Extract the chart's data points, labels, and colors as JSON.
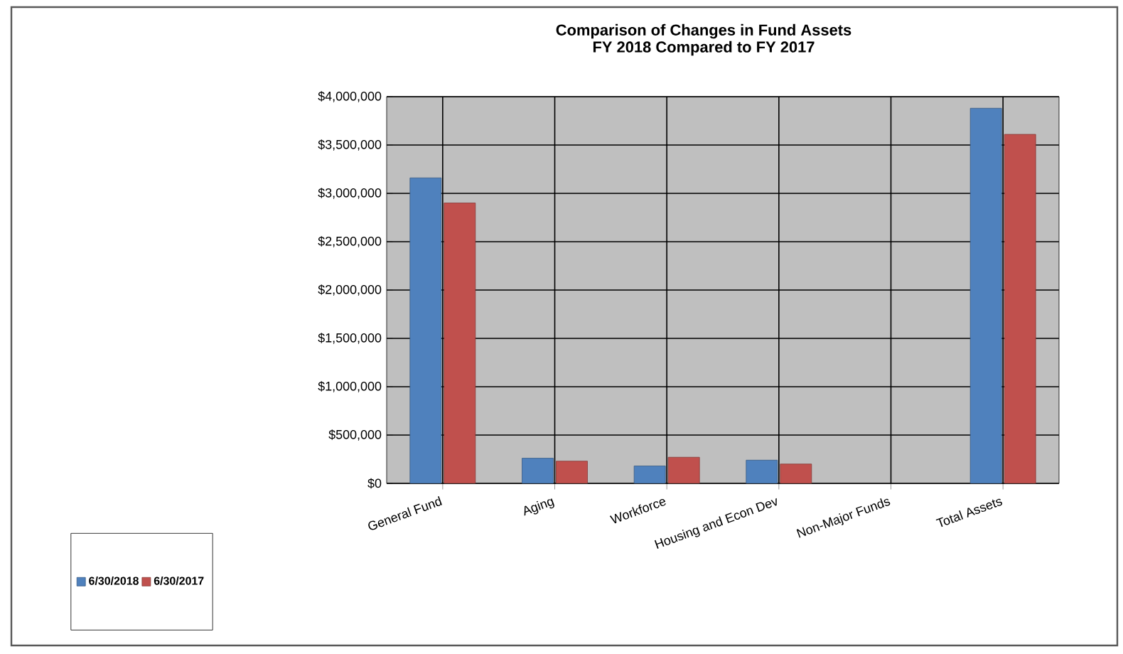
{
  "chart_data": {
    "type": "bar",
    "title": "Comparison of Changes in Fund Assets",
    "subtitle": "FY 2018 Compared to FY 2017",
    "categories": [
      "General Fund",
      "Aging",
      "Workforce",
      "Housing and Econ Dev",
      "Non-Major Funds",
      "Total Assets"
    ],
    "series": [
      {
        "name": "6/30/2018",
        "color": "#4f81bd",
        "values": [
          3160000,
          260000,
          180000,
          240000,
          null,
          3880000
        ]
      },
      {
        "name": "6/30/2017",
        "color": "#c0504d",
        "values": [
          2900000,
          230000,
          270000,
          200000,
          null,
          3610000
        ]
      }
    ],
    "ylim": [
      0,
      4000000
    ],
    "yticks": [
      {
        "value": 0,
        "label": "$0"
      },
      {
        "value": 500000,
        "label": "$500,000"
      },
      {
        "value": 1000000,
        "label": "$1,000,000"
      },
      {
        "value": 1500000,
        "label": "$1,500,000"
      },
      {
        "value": 2000000,
        "label": "$2,000,000"
      },
      {
        "value": 2500000,
        "label": "$2,500,000"
      },
      {
        "value": 3000000,
        "label": "$3,000,000"
      },
      {
        "value": 3500000,
        "label": "$3,500,000"
      },
      {
        "value": 4000000,
        "label": "$4,000,000"
      }
    ],
    "grid": true,
    "legend": "bottom left"
  }
}
